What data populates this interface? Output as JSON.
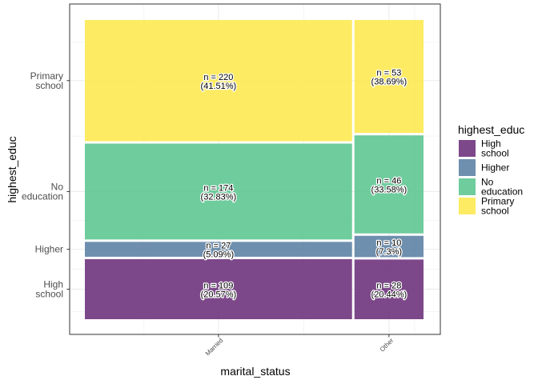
{
  "chart_data": {
    "type": "mosaic",
    "title": "",
    "xlabel": "marital_status",
    "ylabel": "highest_educ",
    "legend_title": "highest_educ",
    "legend_position": "right",
    "grid": true,
    "categories": [
      "Married",
      "Other"
    ],
    "levels": [
      "High school",
      "Higher",
      "No education",
      "Primary school"
    ],
    "y_tick_labels": [
      "High school",
      "Higher",
      "No education",
      "Primary school"
    ],
    "legend_labels": [
      "High school",
      "Higher",
      "No education",
      "Primary school"
    ],
    "colors": {
      "High school": "#6b2f7a",
      "Higher": "#5b80a3",
      "No education": "#5bc58f",
      "Primary school": "#fde84d"
    },
    "series": [
      {
        "name": "High school",
        "counts": [
          109,
          28
        ],
        "percents": [
          "20.57%",
          "20.44%"
        ]
      },
      {
        "name": "Higher",
        "counts": [
          27,
          10
        ],
        "percents": [
          "5.09%",
          "7.3%"
        ]
      },
      {
        "name": "No education",
        "counts": [
          174,
          46
        ],
        "percents": [
          "32.83%",
          "33.58%"
        ]
      },
      {
        "name": "Primary school",
        "counts": [
          220,
          53
        ],
        "percents": [
          "41.51%",
          "38.69%"
        ]
      }
    ]
  }
}
